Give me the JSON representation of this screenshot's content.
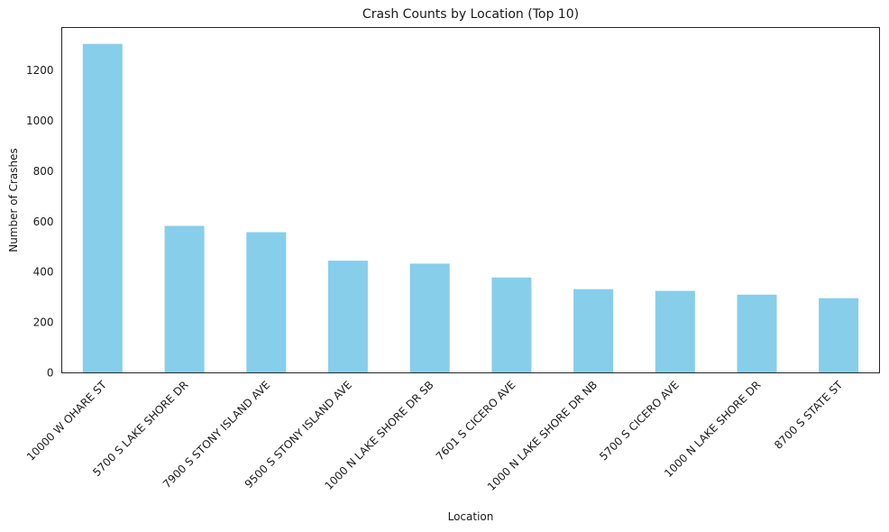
{
  "chart_data": {
    "type": "bar",
    "title": "Crash Counts by Location (Top 10)",
    "xlabel": "Location",
    "ylabel": "Number of Crashes",
    "categories": [
      "10000 W OHARE ST",
      "5700 S LAKE SHORE DR",
      "7900 S STONY ISLAND AVE",
      "9500 S STONY ISLAND AVE",
      "1000 N LAKE SHORE DR SB",
      "7601 S CICERO AVE",
      "1000 N LAKE SHORE DR NB",
      "5700 S CICERO AVE",
      "1000 N LAKE SHORE DR",
      "8700 S STATE ST"
    ],
    "values": [
      1305,
      583,
      558,
      445,
      433,
      378,
      332,
      325,
      310,
      296
    ],
    "ylim": [
      0,
      1370
    ],
    "yticks": [
      0,
      200,
      400,
      600,
      800,
      1000,
      1200
    ],
    "ytick_labels": [
      "0",
      "200",
      "400",
      "600",
      "800",
      "1000",
      "1200"
    ],
    "bar_color": "#87ceeb",
    "grid": false,
    "legend": "none"
  }
}
